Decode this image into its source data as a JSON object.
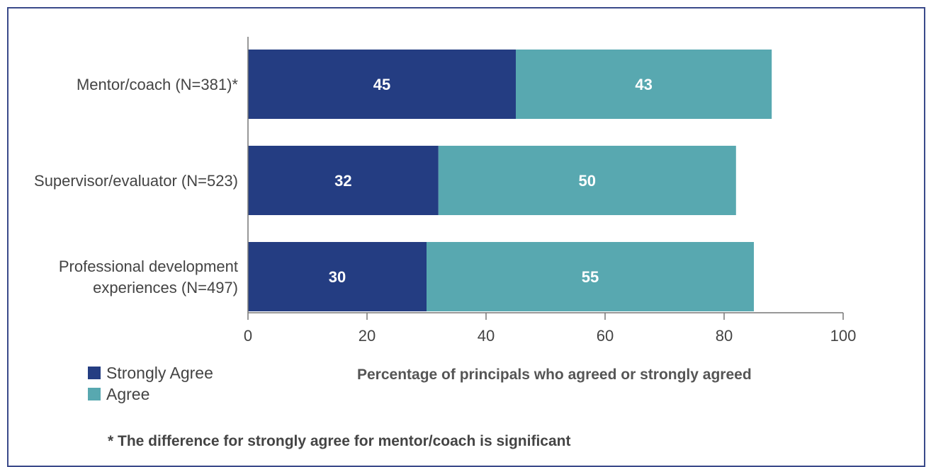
{
  "chart_data": {
    "type": "bar",
    "orientation": "horizontal",
    "stacked": true,
    "categories": [
      [
        "Mentor/coach (N=381)*"
      ],
      [
        "Supervisor/evaluator (N=523)"
      ],
      [
        "Professional development",
        "experiences (N=497)"
      ]
    ],
    "series": [
      {
        "name": "Strongly Agree",
        "color": "#243d82",
        "values": [
          45,
          32,
          30
        ]
      },
      {
        "name": "Agree",
        "color": "#58a8b0",
        "values": [
          43,
          50,
          55
        ]
      }
    ],
    "xlim": [
      0,
      100
    ],
    "xticks": [
      0,
      20,
      40,
      60,
      80,
      100
    ],
    "xlabel": "Percentage of principals who agreed or strongly agreed",
    "footnote": "* The difference for strongly agree for mentor/coach is significant",
    "legend_position": "bottom-left",
    "grid": false
  }
}
